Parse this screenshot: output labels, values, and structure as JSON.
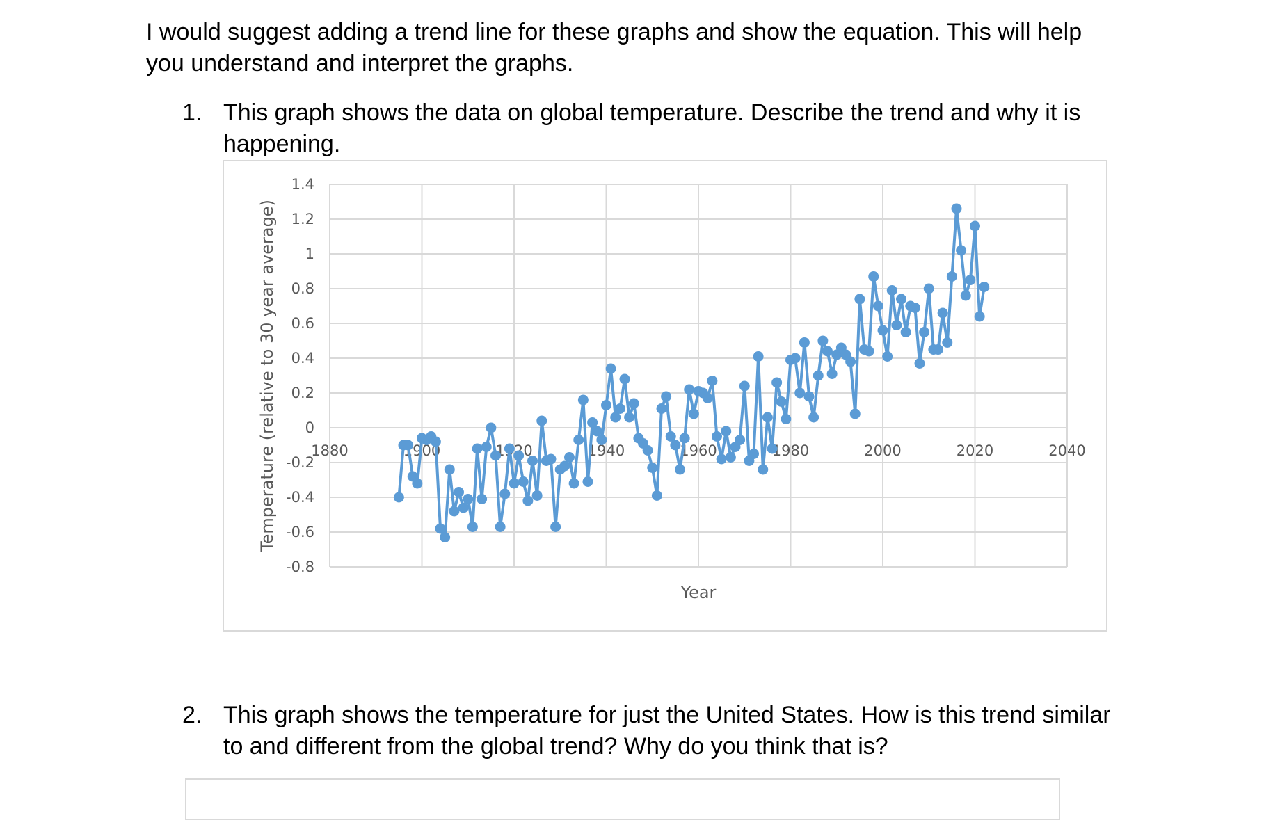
{
  "intro": "I would suggest adding a trend line for these graphs and show the equation. This will help you understand and interpret the graphs.",
  "questions": [
    {
      "number": "1.",
      "text": "This graph shows the data on global temperature. Describe the trend and why it is happening."
    },
    {
      "number": "2.",
      "text": "This graph shows the temperature for just the United States. How is this trend similar to and different from the global trend? Why do you think that is?"
    }
  ],
  "chart_data": {
    "type": "scatter",
    "title": "",
    "xlabel": "Year",
    "ylabel": "Temperature (relative to 30 year average)",
    "xlim": [
      1880,
      2040
    ],
    "ylim": [
      -0.8,
      1.4
    ],
    "x_ticks": [
      "1880",
      "1900",
      "1920",
      "1940",
      "1960",
      "1980",
      "2000",
      "2020",
      "2040"
    ],
    "y_ticks": [
      "1.4",
      "1.2",
      "1",
      "0.8",
      "0.6",
      "0.4",
      "0.2",
      "0",
      "-0.2",
      "-0.4",
      "-0.6",
      "-0.8"
    ],
    "grid": true,
    "line_color": "#5b9bd5",
    "grid_color": "#d9d9d9",
    "series": [
      {
        "x": [
          1895,
          1896,
          1897,
          1898,
          1899,
          1900,
          1901,
          1902,
          1903,
          1904,
          1905,
          1906,
          1907,
          1908,
          1909,
          1910,
          1911,
          1912,
          1913,
          1914,
          1915,
          1916,
          1917,
          1918,
          1919,
          1920,
          1921,
          1922,
          1923,
          1924,
          1925,
          1926,
          1927,
          1928,
          1929,
          1930,
          1931,
          1932,
          1933,
          1934,
          1935,
          1936,
          1937,
          1938,
          1939,
          1940,
          1941,
          1942,
          1943,
          1944,
          1945,
          1946,
          1947,
          1948,
          1949,
          1950,
          1951,
          1952,
          1953,
          1954,
          1955,
          1956,
          1957,
          1958,
          1959,
          1960,
          1961,
          1962,
          1963,
          1964,
          1965,
          1966,
          1967,
          1968,
          1969,
          1970,
          1971,
          1972,
          1973,
          1974,
          1975,
          1976,
          1977,
          1978,
          1979,
          1980,
          1981,
          1982,
          1983,
          1984,
          1985,
          1986,
          1987,
          1988,
          1989,
          1990,
          1991,
          1992,
          1993,
          1994,
          1995,
          1996,
          1997,
          1998,
          1999,
          2000,
          2001,
          2002,
          2003,
          2004,
          2005,
          2006,
          2007,
          2008,
          2009,
          2010,
          2011,
          2012,
          2013,
          2014,
          2015,
          2016,
          2017,
          2018,
          2019,
          2020,
          2021,
          2022
        ],
        "y": [
          -0.4,
          -0.1,
          -0.1,
          -0.28,
          -0.32,
          -0.06,
          -0.07,
          -0.05,
          -0.08,
          -0.58,
          -0.63,
          -0.24,
          -0.48,
          -0.37,
          -0.46,
          -0.41,
          -0.57,
          -0.12,
          -0.41,
          -0.11,
          0.0,
          -0.16,
          -0.57,
          -0.38,
          -0.12,
          -0.32,
          -0.16,
          -0.31,
          -0.42,
          -0.19,
          -0.39,
          0.04,
          -0.19,
          -0.18,
          -0.57,
          -0.24,
          -0.22,
          -0.17,
          -0.32,
          -0.07,
          0.16,
          -0.31,
          0.03,
          -0.02,
          -0.07,
          0.13,
          0.34,
          0.06,
          0.11,
          0.28,
          0.06,
          0.14,
          -0.06,
          -0.09,
          -0.13,
          -0.23,
          -0.39,
          0.11,
          0.18,
          -0.05,
          -0.1,
          -0.24,
          -0.06,
          0.22,
          0.08,
          0.21,
          0.2,
          0.17,
          0.27,
          -0.05,
          -0.18,
          -0.02,
          -0.17,
          -0.11,
          -0.07,
          0.24,
          -0.19,
          -0.15,
          0.41,
          -0.24,
          0.06,
          -0.12,
          0.26,
          0.15,
          0.05,
          0.39,
          0.4,
          0.2,
          0.49,
          0.18,
          0.06,
          0.3,
          0.5,
          0.44,
          0.31,
          0.42,
          0.46,
          0.42,
          0.38,
          0.08,
          0.74,
          0.45,
          0.44,
          0.87,
          0.7,
          0.56,
          0.41,
          0.79,
          0.59,
          0.74,
          0.55,
          0.7,
          0.69,
          0.37,
          0.55,
          0.8,
          0.45,
          0.45,
          0.66,
          0.49,
          0.87,
          1.26,
          1.02,
          0.76,
          0.85,
          1.16,
          0.64,
          0.81
        ]
      }
    ]
  },
  "chart2": {}
}
